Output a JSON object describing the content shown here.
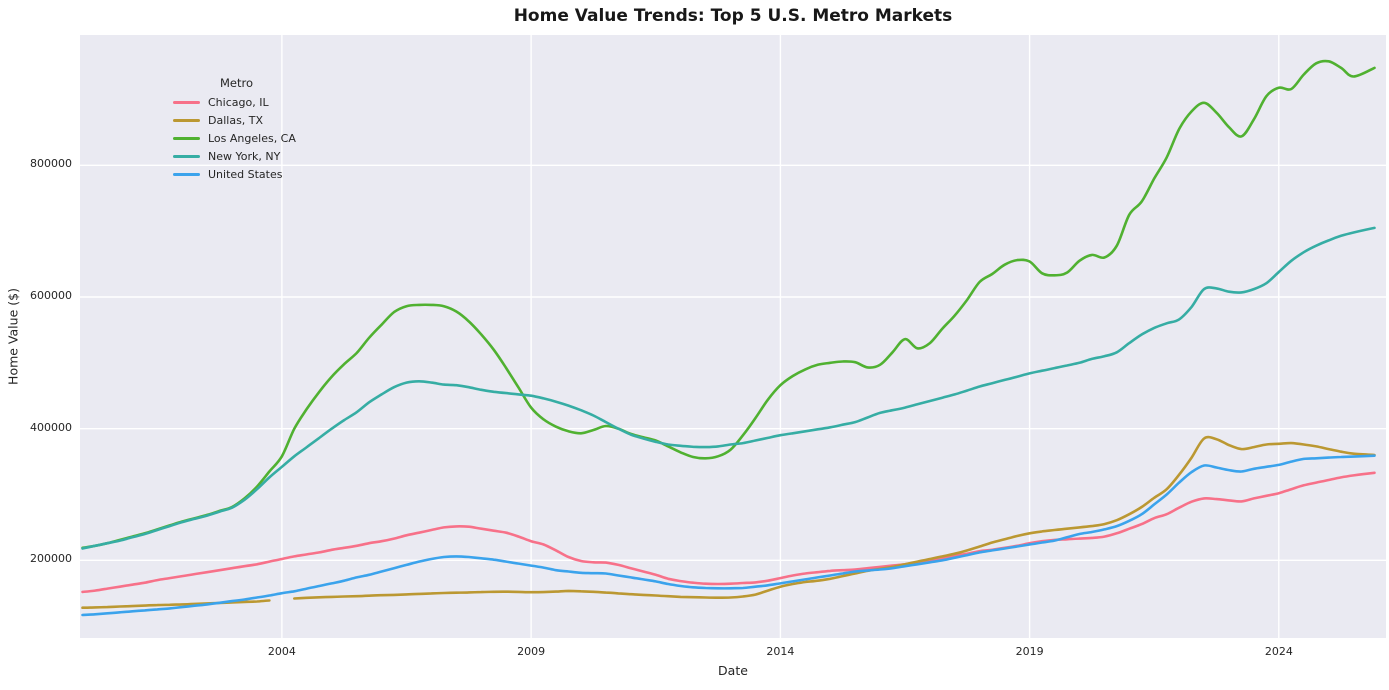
{
  "chart_data": {
    "type": "line",
    "title": "Home Value Trends: Top 5 U.S. Metro Markets",
    "xlabel": "Date",
    "ylabel": "Home Value ($)",
    "grid": true,
    "panel_bg": "#eaeaf2",
    "grid_color": "#ffffff",
    "legend": {
      "title": "Metro",
      "position": "upper left"
    },
    "xlim": [
      1999.95,
      2026.15
    ],
    "ylim": [
      82000,
      998000
    ],
    "xticks": [
      2004,
      2009,
      2014,
      2019,
      2024
    ],
    "yticks": [
      200000,
      400000,
      600000,
      800000
    ],
    "x": [
      2000,
      2000.25,
      2000.5,
      2000.75,
      2001,
      2001.25,
      2001.5,
      2001.75,
      2002,
      2002.25,
      2002.5,
      2002.75,
      2003,
      2003.25,
      2003.5,
      2003.75,
      2004,
      2004.25,
      2004.5,
      2004.75,
      2005,
      2005.25,
      2005.5,
      2005.75,
      2006,
      2006.25,
      2006.5,
      2006.75,
      2007,
      2007.25,
      2007.5,
      2007.75,
      2008,
      2008.25,
      2008.5,
      2008.75,
      2009,
      2009.25,
      2009.5,
      2009.75,
      2010,
      2010.25,
      2010.5,
      2010.75,
      2011,
      2011.25,
      2011.5,
      2011.75,
      2012,
      2012.25,
      2012.5,
      2012.75,
      2013,
      2013.25,
      2013.5,
      2013.75,
      2014,
      2014.25,
      2014.5,
      2014.75,
      2015,
      2015.25,
      2015.5,
      2015.75,
      2016,
      2016.25,
      2016.5,
      2016.75,
      2017,
      2017.25,
      2017.5,
      2017.75,
      2018,
      2018.25,
      2018.5,
      2018.75,
      2019,
      2019.25,
      2019.5,
      2019.75,
      2020,
      2020.25,
      2020.5,
      2020.75,
      2021,
      2021.25,
      2021.5,
      2021.75,
      2022,
      2022.25,
      2022.5,
      2022.75,
      2023,
      2023.25,
      2023.5,
      2023.75,
      2024,
      2024.25,
      2024.5,
      2024.75,
      2025,
      2025.25,
      2025.5,
      2025.92
    ],
    "series": [
      {
        "name": "Chicago, IL",
        "color": "#f77189",
        "values": [
          152000,
          154000,
          157000,
          160000,
          163000,
          166000,
          170000,
          173000,
          176000,
          179000,
          182000,
          185000,
          188000,
          191000,
          194000,
          198000,
          202000,
          206000,
          209000,
          212000,
          216000,
          219000,
          222000,
          226000,
          229000,
          233000,
          238000,
          242000,
          246000,
          250000,
          251500,
          251000,
          248000,
          245000,
          242000,
          236000,
          229000,
          224000,
          215000,
          205000,
          199000,
          197000,
          196500,
          193000,
          188000,
          183000,
          178000,
          172000,
          168500,
          166000,
          164500,
          164000,
          164500,
          165500,
          166500,
          169000,
          173000,
          177000,
          180000,
          182000,
          184000,
          185000,
          186000,
          188000,
          190000,
          192000,
          194000,
          197000,
          200000,
          203000,
          207000,
          210000,
          214000,
          216000,
          219000,
          222000,
          226000,
          229000,
          231000,
          232000,
          233000,
          234000,
          236000,
          241000,
          248000,
          255000,
          264000,
          270000,
          280000,
          289000,
          294000,
          293000,
          291000,
          289500,
          294000,
          298000,
          302000,
          308000,
          314000,
          318000,
          322000,
          326000,
          329000,
          333000
        ]
      },
      {
        "name": "Dallas, TX",
        "color": "#bb9832",
        "values": [
          128000,
          128500,
          129000,
          129800,
          130500,
          131200,
          132000,
          132500,
          133000,
          133800,
          134500,
          135200,
          136000,
          136800,
          137500,
          139000,
          null,
          142000,
          143000,
          143800,
          144500,
          145000,
          145500,
          146200,
          147000,
          147500,
          148200,
          149000,
          149800,
          150300,
          150800,
          151200,
          151800,
          152200,
          152400,
          152000,
          151500,
          151800,
          152500,
          153500,
          153000,
          152200,
          151000,
          149800,
          148500,
          147500,
          146500,
          145500,
          144500,
          144000,
          143500,
          143200,
          143500,
          145000,
          148000,
          154000,
          160000,
          164000,
          167000,
          169000,
          172000,
          176000,
          180000,
          184000,
          187000,
          190000,
          194000,
          198000,
          202000,
          206000,
          210000,
          215000,
          221000,
          227000,
          232000,
          237000,
          241000,
          244000,
          246000,
          248000,
          250000,
          252000,
          255000,
          261000,
          270000,
          281000,
          295000,
          308000,
          330000,
          356000,
          385000,
          384000,
          375000,
          369000,
          372000,
          376000,
          377000,
          378000,
          376000,
          373000,
          369000,
          365000,
          362000,
          360000
        ]
      },
      {
        "name": "Los Angeles, CA",
        "color": "#50b131",
        "values": [
          219000,
          222000,
          226000,
          231000,
          236000,
          241000,
          247000,
          253000,
          259000,
          264000,
          269000,
          275000,
          281000,
          294000,
          312000,
          335000,
          358000,
          400000,
          430000,
          456000,
          479000,
          498000,
          515000,
          538000,
          558000,
          577000,
          586000,
          588000,
          588000,
          586000,
          578000,
          563000,
          543000,
          520000,
          492000,
          462000,
          432000,
          414000,
          403000,
          396000,
          393000,
          398000,
          404000,
          400000,
          392000,
          387000,
          382000,
          373000,
          364000,
          357000,
          355000,
          358000,
          368000,
          390000,
          416000,
          444000,
          466000,
          480000,
          490000,
          497000,
          500000,
          502000,
          501000,
          493000,
          497000,
          516000,
          536000,
          522000,
          530000,
          552000,
          572000,
          596000,
          623000,
          635000,
          649000,
          656000,
          654000,
          636000,
          633000,
          637000,
          655000,
          664000,
          660000,
          678000,
          725000,
          745000,
          780000,
          812000,
          855000,
          882000,
          895000,
          880000,
          858000,
          844000,
          870000,
          905000,
          918000,
          916000,
          938000,
          955000,
          958000,
          948000,
          935000,
          948000
        ]
      },
      {
        "name": "New York, NY",
        "color": "#36ada4",
        "values": [
          218000,
          222000,
          226000,
          230000,
          235000,
          240000,
          246000,
          252000,
          258000,
          263000,
          268000,
          274000,
          280000,
          292000,
          308000,
          326000,
          342000,
          358000,
          372000,
          386000,
          400000,
          413000,
          425000,
          440000,
          452000,
          463000,
          470000,
          472000,
          470000,
          467000,
          466000,
          463000,
          459000,
          456000,
          454000,
          452000,
          450000,
          446000,
          441000,
          435000,
          428000,
          420000,
          410000,
          400000,
          391000,
          385000,
          380000,
          376000,
          374000,
          372500,
          372000,
          373000,
          376000,
          378000,
          382000,
          386000,
          390000,
          393000,
          396000,
          399000,
          402000,
          406000,
          410000,
          417000,
          424000,
          428000,
          432000,
          437000,
          442000,
          447000,
          452000,
          458000,
          464000,
          469000,
          474000,
          479000,
          484000,
          488000,
          492000,
          496000,
          500000,
          506000,
          510000,
          516000,
          530000,
          543000,
          553000,
          560000,
          566000,
          585000,
          612000,
          613000,
          608000,
          607000,
          612000,
          621000,
          638000,
          655000,
          668000,
          678000,
          686000,
          693000,
          698000,
          705000
        ]
      },
      {
        "name": "United States",
        "color": "#3ba3ec",
        "values": [
          117000,
          118000,
          119500,
          121000,
          122500,
          124000,
          125500,
          127000,
          129000,
          131000,
          133000,
          135500,
          138000,
          140500,
          143500,
          146500,
          150000,
          153000,
          157000,
          161000,
          165000,
          169000,
          174000,
          178000,
          183000,
          188000,
          193000,
          198000,
          202000,
          205000,
          206000,
          205000,
          203000,
          201000,
          198000,
          195000,
          192000,
          189000,
          185000,
          183000,
          181000,
          180500,
          180000,
          177000,
          174000,
          171000,
          168000,
          164000,
          161000,
          159000,
          158000,
          157500,
          157500,
          158000,
          160000,
          162000,
          165000,
          168000,
          171000,
          174000,
          177000,
          180000,
          183000,
          184500,
          186000,
          188000,
          191000,
          194000,
          197000,
          200000,
          204000,
          208000,
          212000,
          215000,
          218000,
          221000,
          224000,
          227000,
          230000,
          235000,
          240000,
          243000,
          247000,
          252000,
          260000,
          270000,
          285000,
          300000,
          318000,
          334000,
          344000,
          341000,
          337000,
          335000,
          339000,
          342000,
          345000,
          350000,
          354000,
          355000,
          356000,
          357000,
          357500,
          359000
        ]
      }
    ]
  }
}
